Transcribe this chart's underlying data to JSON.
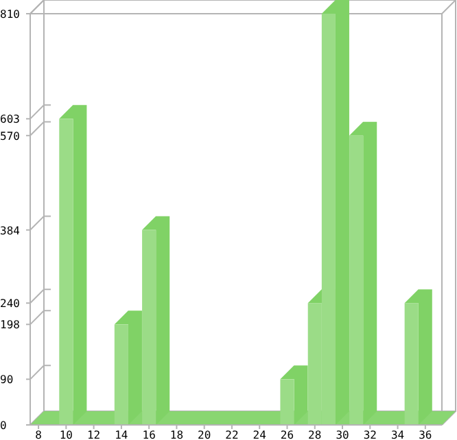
{
  "chart_data": {
    "type": "bar",
    "x": [
      10,
      14,
      16,
      26,
      28,
      29,
      31,
      35
    ],
    "values": [
      603,
      198,
      384,
      90,
      240,
      810,
      570,
      240
    ],
    "color": "#9bdc87",
    "xlim": [
      7.4,
      37.2
    ],
    "xticks": [
      8,
      10,
      12,
      14,
      16,
      18,
      20,
      22,
      24,
      26,
      28,
      30,
      32,
      34,
      36
    ],
    "ylim": [
      0,
      810
    ],
    "yticks": [
      0,
      90,
      198,
      240,
      384,
      570,
      603,
      810
    ],
    "grid": false
  }
}
